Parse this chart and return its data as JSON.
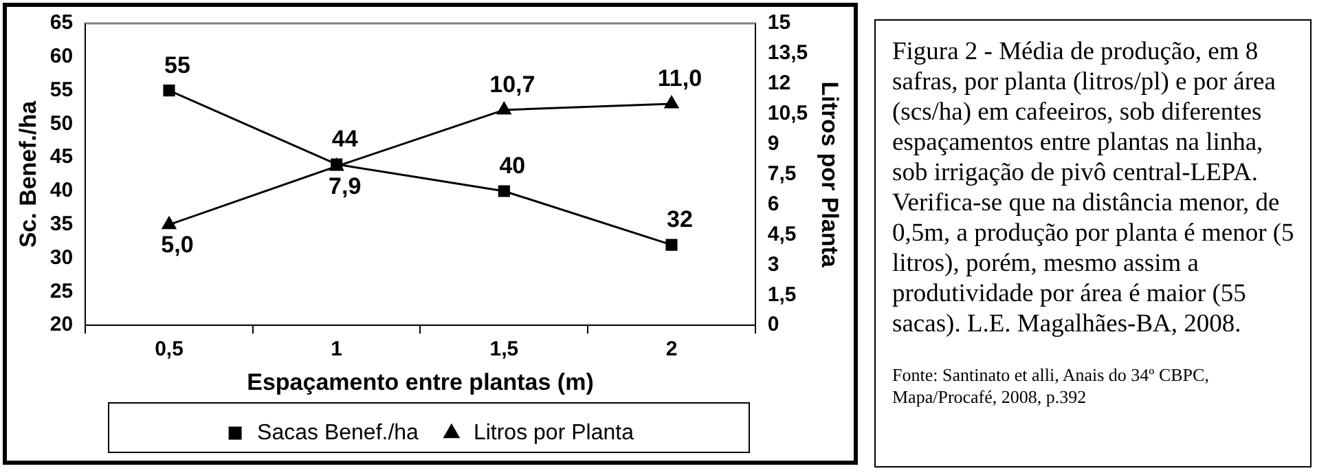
{
  "chart_data": {
    "type": "line",
    "xlabel": "Espaçamento entre plantas (m)",
    "ylabel": "Sc. Benef./ha",
    "y2label": "Litros por Planta",
    "categories": [
      "0,5",
      "1",
      "1,5",
      "2"
    ],
    "series": [
      {
        "name": "Sacas Benef./ha",
        "color": "#000000",
        "values": [
          55,
          44,
          40,
          32
        ],
        "value_labels": [
          "55",
          "44",
          "40",
          "32"
        ],
        "marker": "square"
      },
      {
        "name": "Litros por Planta",
        "color": "#000000",
        "values": [
          5.0,
          7.9,
          10.7,
          11.0
        ],
        "value_labels": [
          "5,0",
          "7,9",
          "10,7",
          "11,0"
        ],
        "marker": "triangle",
        "axis": "y2"
      }
    ],
    "ylim": [
      20,
      65
    ],
    "yticks": [
      20,
      25,
      30,
      35,
      40,
      45,
      50,
      55,
      60,
      65
    ],
    "y2lim": [
      0,
      15
    ],
    "y2ticks": [
      0,
      {
        "value": 1.5,
        "label": "1,5"
      },
      3,
      {
        "value": 4.5,
        "label": "4,5"
      },
      6,
      {
        "value": 7.5,
        "label": "7,5"
      },
      9,
      {
        "value": 10.5,
        "label": "10,5"
      },
      12,
      {
        "value": 13.5,
        "label": "13,5"
      },
      15
    ],
    "grid": false,
    "legend": "bottom",
    "line_style": "solid",
    "annotations": [
      "Figura 2 - Média de produção, em 8 safras, por planta (litros/pl) e por área (scs/ha) em cafeeiros, sob diferentes espaçamentos entre plantas na linha, sob irrigação de pivô central-LEPA. Verifica-se que na distância menor, de 0,5m, a produção por planta é menor (5 litros), porém, mesmo assim a produtividade por área é maior (55 sacas). L.E. Magalhães-BA, 2008.",
      "Fonte: Santinato et alli, Anais do 34º CBPC, Mapa/Procafé, 2008, p.392"
    ]
  }
}
